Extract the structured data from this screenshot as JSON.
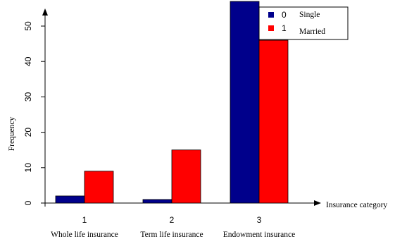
{
  "chart_data": {
    "type": "bar",
    "title": "",
    "ylabel": "Frequency",
    "xlabel": "Insurance category",
    "categories": [
      "1",
      "2",
      "3"
    ],
    "category_names": [
      "Whole life insurance",
      "Term life insurance",
      "Endowment insurance"
    ],
    "yticks": [
      "0",
      "10",
      "20",
      "30",
      "40",
      "50"
    ],
    "ylim": [
      0,
      57
    ],
    "legend_placement": "top-right",
    "series": [
      {
        "name": "Single",
        "code": "0",
        "color": "#00008b",
        "values": [
          2,
          1,
          57
        ]
      },
      {
        "name": "Married",
        "code": "1",
        "color": "#ff0000",
        "values": [
          9,
          15,
          46
        ]
      }
    ]
  }
}
